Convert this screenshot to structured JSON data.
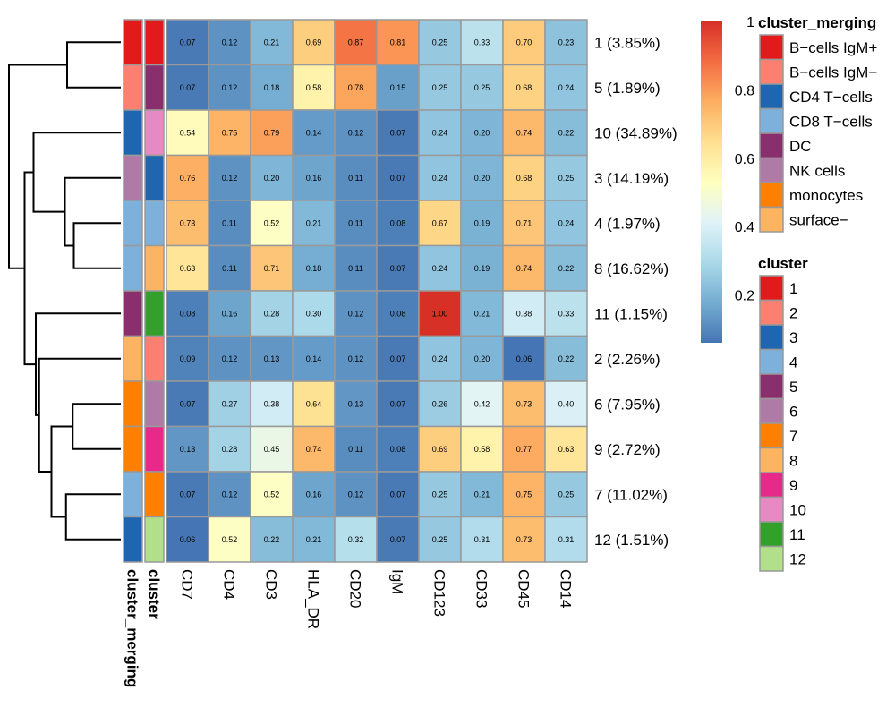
{
  "chart_data": {
    "type": "heatmap",
    "title": "",
    "columns": [
      "CD7",
      "CD4",
      "CD3",
      "HLA_DR",
      "CD20",
      "IgM",
      "CD123",
      "CD33",
      "CD45",
      "CD14"
    ],
    "rows": [
      {
        "cluster": "1",
        "label": "1 (3.85%)",
        "merging": "B-cells IgM+",
        "values": [
          0.07,
          0.12,
          0.21,
          0.69,
          0.87,
          0.81,
          0.25,
          0.33,
          0.7,
          0.23
        ]
      },
      {
        "cluster": "5",
        "label": "5 (1.89%)",
        "merging": "B-cells IgM-",
        "values": [
          0.07,
          0.12,
          0.18,
          0.58,
          0.78,
          0.15,
          0.25,
          0.25,
          0.68,
          0.24
        ]
      },
      {
        "cluster": "10",
        "label": "10 (34.89%)",
        "merging": "CD4 T-cells",
        "values": [
          0.54,
          0.75,
          0.79,
          0.14,
          0.12,
          0.07,
          0.24,
          0.2,
          0.74,
          0.22
        ]
      },
      {
        "cluster": "3",
        "label": "3 (14.19%)",
        "merging": "NK cells",
        "values": [
          0.76,
          0.12,
          0.2,
          0.16,
          0.11,
          0.07,
          0.24,
          0.2,
          0.68,
          0.25
        ]
      },
      {
        "cluster": "4",
        "label": "4 (1.97%)",
        "merging": "CD8 T-cells",
        "values": [
          0.73,
          0.11,
          0.52,
          0.21,
          0.11,
          0.08,
          0.67,
          0.19,
          0.71,
          0.24
        ]
      },
      {
        "cluster": "8",
        "label": "8 (16.62%)",
        "merging": "CD8 T-cells",
        "values": [
          0.63,
          0.11,
          0.71,
          0.18,
          0.11,
          0.07,
          0.24,
          0.19,
          0.74,
          0.22
        ]
      },
      {
        "cluster": "11",
        "label": "11 (1.15%)",
        "merging": "DC",
        "values": [
          0.08,
          0.16,
          0.28,
          0.3,
          0.12,
          0.08,
          1.0,
          0.21,
          0.38,
          0.33
        ]
      },
      {
        "cluster": "2",
        "label": "2 (2.26%)",
        "merging": "surface-",
        "values": [
          0.09,
          0.12,
          0.13,
          0.14,
          0.12,
          0.07,
          0.24,
          0.2,
          0.06,
          0.22
        ]
      },
      {
        "cluster": "6",
        "label": "6 (7.95%)",
        "merging": "monocytes",
        "values": [
          0.07,
          0.27,
          0.38,
          0.64,
          0.13,
          0.07,
          0.26,
          0.42,
          0.73,
          0.4
        ]
      },
      {
        "cluster": "9",
        "label": "9 (2.72%)",
        "merging": "monocytes",
        "values": [
          0.13,
          0.28,
          0.45,
          0.74,
          0.11,
          0.08,
          0.69,
          0.58,
          0.77,
          0.63
        ]
      },
      {
        "cluster": "7",
        "label": "7 (11.02%)",
        "merging": "CD8 T-cells",
        "values": [
          0.07,
          0.12,
          0.52,
          0.16,
          0.12,
          0.07,
          0.25,
          0.21,
          0.75,
          0.25
        ]
      },
      {
        "cluster": "12",
        "label": "12 (1.51%)",
        "merging": "CD4 T-cells",
        "values": [
          0.06,
          0.52,
          0.22,
          0.21,
          0.32,
          0.07,
          0.25,
          0.31,
          0.73,
          0.31
        ]
      }
    ],
    "annotation_labels": {
      "merging": "cluster_merging",
      "cluster": "cluster"
    },
    "color_scale": {
      "min": 0.06,
      "max": 1.0,
      "ticks": [
        {
          "value": 0.2,
          "label": "0.2"
        },
        {
          "value": 0.4,
          "label": "0.4"
        },
        {
          "value": 0.6,
          "label": "0.6"
        },
        {
          "value": 0.8,
          "label": "0.8"
        },
        {
          "value": 1.0,
          "label": "1"
        }
      ],
      "stops": [
        "#4575b4",
        "#74add1",
        "#abd9e9",
        "#e0f3f8",
        "#ffffbf",
        "#fee090",
        "#fdae61",
        "#f46d43",
        "#d73027"
      ]
    },
    "legend_merging": {
      "title": "cluster_merging",
      "items": [
        {
          "label": "B−cells IgM+",
          "key": "B-cells IgM+",
          "color": "#e31a1c"
        },
        {
          "label": "B−cells IgM−",
          "key": "B-cells IgM-",
          "color": "#fb8072"
        },
        {
          "label": "CD4 T−cells",
          "key": "CD4 T-cells",
          "color": "#1f65b0"
        },
        {
          "label": "CD8 T−cells",
          "key": "CD8 T-cells",
          "color": "#7eb0dc"
        },
        {
          "label": "DC",
          "key": "DC",
          "color": "#8a2f6e"
        },
        {
          "label": "NK cells",
          "key": "NK cells",
          "color": "#b07aa6"
        },
        {
          "label": "monocytes",
          "key": "monocytes",
          "color": "#ff7f00"
        },
        {
          "label": "surface−",
          "key": "surface-",
          "color": "#fdb462"
        }
      ]
    },
    "legend_cluster": {
      "title": "cluster",
      "items": [
        {
          "label": "1",
          "color": "#e31a1c"
        },
        {
          "label": "2",
          "color": "#fb8072"
        },
        {
          "label": "3",
          "color": "#1f65b0"
        },
        {
          "label": "4",
          "color": "#7eb0dc"
        },
        {
          "label": "5",
          "color": "#8a2f6e"
        },
        {
          "label": "6",
          "color": "#b07aa6"
        },
        {
          "label": "7",
          "color": "#ff7f00"
        },
        {
          "label": "8",
          "color": "#fdb462"
        },
        {
          "label": "9",
          "color": "#e7298a"
        },
        {
          "label": "10",
          "color": "#e78ac3"
        },
        {
          "label": "11",
          "color": "#33a02c"
        },
        {
          "label": "12",
          "color": "#b2df8a"
        }
      ]
    },
    "dendrogram": {
      "leaves": [
        "1",
        "5",
        "10",
        "3",
        "4",
        "8",
        "11",
        "2",
        "6",
        "9",
        "7",
        "12"
      ],
      "merges": [
        {
          "a": "1",
          "b": "5",
          "height": 0.48
        },
        {
          "a": "4",
          "b": "8",
          "height": 0.42
        },
        {
          "a": "3",
          "b": "4+8",
          "height": 0.5
        },
        {
          "a": "10",
          "b": "3+4+8",
          "height": 0.78
        },
        {
          "a": "6",
          "b": "9",
          "height": 0.43
        },
        {
          "a": "7",
          "b": "12",
          "height": 0.49
        },
        {
          "a": "6+9",
          "b": "7+12",
          "height": 0.62
        },
        {
          "a": "2",
          "b": "6+9+7+12",
          "height": 0.73
        },
        {
          "a": "11",
          "b": "2+6+9+7+12",
          "height": 0.76
        },
        {
          "a": "10+3+4+8",
          "b": "11+2+6+9+7+12",
          "height": 0.86
        },
        {
          "a": "1+5",
          "b": "rest",
          "height": 1.0
        }
      ]
    }
  }
}
